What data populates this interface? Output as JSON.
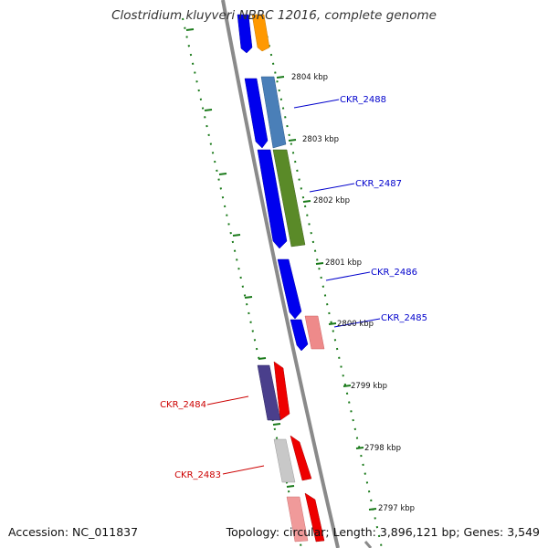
{
  "title": "Clostridium kluyveri NBRC 12016, complete genome",
  "footer": {
    "accession": "Accession: NC_011837",
    "summary": "Topology: circular; Length: 3,896,121 bp; Genes: 3,549"
  },
  "scale_labels": [
    "2804 kbp",
    "2803 kbp",
    "2802 kbp",
    "2801 kbp",
    "2800 kbp",
    "2799 kbp",
    "2798 kbp",
    "2797 kbp"
  ],
  "gene_labels": [
    "CKR_2488",
    "CKR_2487",
    "CKR_2486",
    "CKR_2485",
    "CKR_2484",
    "CKR_2483"
  ],
  "colors": {
    "forward_gene": "#0000ee",
    "reverse_gene": "#ee0000",
    "forward_label": "#0000cc",
    "reverse_label": "#cc0000",
    "backbone": "#808080",
    "tick": "#1a7a1a"
  }
}
